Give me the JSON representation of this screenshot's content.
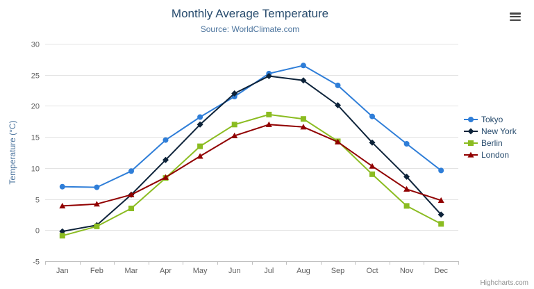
{
  "header": {
    "title": "Monthly Average Temperature",
    "subtitle": "Source: WorldClimate.com"
  },
  "toolbar": {
    "context_menu_icon": "hamburger-menu-icon"
  },
  "credit": "Highcharts.com",
  "chart_data": {
    "type": "line",
    "title": "Monthly Average Temperature",
    "subtitle": "Source: WorldClimate.com",
    "categories": [
      "Jan",
      "Feb",
      "Mar",
      "Apr",
      "May",
      "Jun",
      "Jul",
      "Aug",
      "Sep",
      "Oct",
      "Nov",
      "Dec"
    ],
    "series": [
      {
        "name": "Tokyo",
        "color": "#2f7ed8",
        "marker": "circle",
        "values": [
          7.0,
          6.9,
          9.5,
          14.5,
          18.2,
          21.5,
          25.2,
          26.5,
          23.3,
          18.3,
          13.9,
          9.6
        ]
      },
      {
        "name": "New York",
        "color": "#0d233a",
        "marker": "diamond",
        "values": [
          -0.2,
          0.8,
          5.7,
          11.3,
          17.0,
          22.0,
          24.8,
          24.1,
          20.1,
          14.1,
          8.6,
          2.5
        ]
      },
      {
        "name": "Berlin",
        "color": "#8bbc21",
        "marker": "square",
        "values": [
          -0.9,
          0.6,
          3.5,
          8.4,
          13.5,
          17.0,
          18.6,
          17.9,
          14.3,
          9.0,
          3.9,
          1.0
        ]
      },
      {
        "name": "London",
        "color": "#910000",
        "marker": "triangle",
        "values": [
          3.9,
          4.2,
          5.7,
          8.5,
          11.9,
          15.2,
          17.0,
          16.6,
          14.2,
          10.3,
          6.6,
          4.8
        ]
      }
    ],
    "xlabel": "",
    "ylabel": "Temperature (°C)",
    "ylim": [
      -5,
      30
    ],
    "yticks": [
      -5,
      0,
      5,
      10,
      15,
      20,
      25,
      30
    ],
    "grid": true,
    "legend_position": "right"
  }
}
